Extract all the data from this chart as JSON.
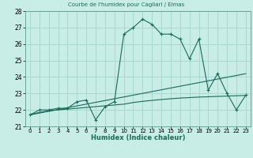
{
  "title": "Courbe de l'humidex pour Cagliari / Elmas",
  "xlabel": "Humidex (Indice chaleur)",
  "background_color": "#c8ece6",
  "grid_color": "#a8d8d0",
  "line_color": "#1a6b5a",
  "ylim": [
    21,
    28
  ],
  "xlim": [
    -0.5,
    23.5
  ],
  "yticks": [
    21,
    22,
    23,
    24,
    25,
    26,
    27,
    28
  ],
  "xtick_labels": [
    "0",
    "1",
    "2",
    "3",
    "4",
    "5",
    "6",
    "7",
    "8",
    "9",
    "10",
    "11",
    "12",
    "13",
    "14",
    "15",
    "16",
    "17",
    "18",
    "19",
    "20",
    "21",
    "22",
    "23"
  ],
  "main_x": [
    0,
    1,
    2,
    3,
    4,
    5,
    6,
    7,
    8,
    9,
    10,
    11,
    12,
    13,
    14,
    15,
    16,
    17,
    18,
    19,
    20,
    21,
    22,
    23
  ],
  "main_y": [
    21.7,
    22.0,
    22.0,
    22.1,
    22.1,
    22.5,
    22.6,
    21.4,
    22.2,
    22.5,
    26.6,
    27.0,
    27.5,
    27.2,
    26.6,
    26.6,
    26.3,
    25.1,
    26.3,
    23.2,
    24.2,
    23.0,
    22.0,
    22.9
  ],
  "trend_x": [
    0,
    23
  ],
  "trend_y": [
    21.7,
    24.2
  ],
  "smooth_x": [
    0,
    1,
    2,
    3,
    4,
    5,
    6,
    7,
    8,
    9,
    10,
    11,
    12,
    13,
    14,
    15,
    16,
    17,
    18,
    19,
    20,
    21,
    22,
    23
  ],
  "smooth_y": [
    21.7,
    21.85,
    21.95,
    22.0,
    22.05,
    22.1,
    22.15,
    22.2,
    22.25,
    22.3,
    22.35,
    22.45,
    22.52,
    22.58,
    22.63,
    22.68,
    22.72,
    22.75,
    22.78,
    22.8,
    22.82,
    22.84,
    22.86,
    22.88
  ]
}
